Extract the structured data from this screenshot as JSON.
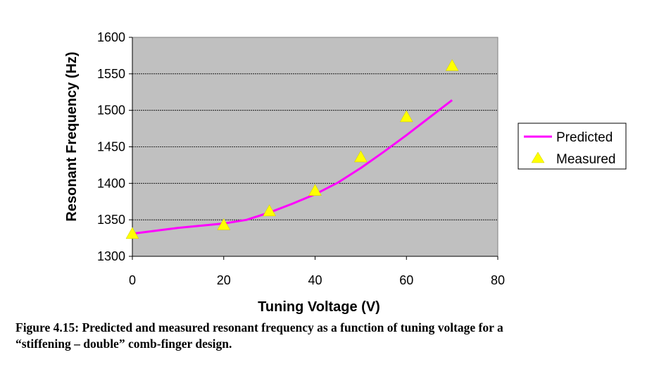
{
  "chart_data": {
    "type": "line",
    "xlabel": "Tuning Voltage (V)",
    "ylabel": "Resonant Frequency (Hz)",
    "xlim": [
      0,
      80
    ],
    "ylim": [
      1300,
      1600
    ],
    "x_ticks": [
      "0",
      "20",
      "40",
      "60",
      "80"
    ],
    "y_ticks": [
      "1300",
      "1350",
      "1400",
      "1450",
      "1500",
      "1550",
      "1600"
    ],
    "grid": "horizontal",
    "plot_background": "#c0c0c0",
    "legend_position": "right",
    "series": [
      {
        "name": "Predicted",
        "style": "line",
        "color": "#ff00ff",
        "x": [
          0,
          5,
          10,
          15,
          20,
          25,
          30,
          35,
          40,
          45,
          50,
          55,
          60,
          65,
          70
        ],
        "y": [
          1331,
          1335,
          1339,
          1342,
          1345,
          1350,
          1360,
          1372,
          1385,
          1401,
          1421,
          1443,
          1466,
          1490,
          1514
        ]
      },
      {
        "name": "Measured",
        "style": "marker",
        "marker": "triangle",
        "color": "#ffff00",
        "x": [
          0,
          20,
          30,
          40,
          50,
          60,
          70
        ],
        "y": [
          1331,
          1343,
          1362,
          1390,
          1436,
          1491,
          1561
        ]
      }
    ]
  },
  "caption": {
    "line1": "Figure 4.15: Predicted and measured resonant frequency as a function of tuning voltage for a",
    "line2": "“stiffening – double” comb-finger design."
  }
}
